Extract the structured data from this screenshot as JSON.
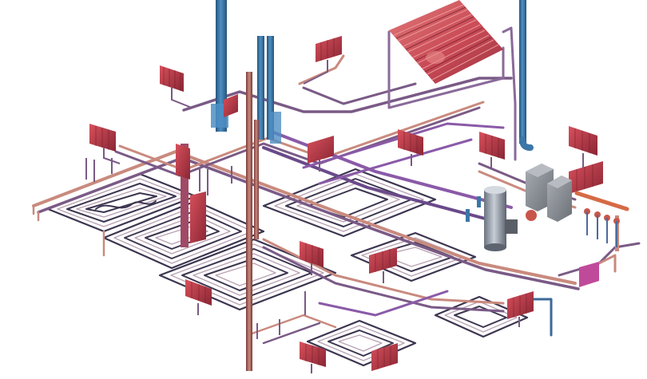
{
  "scene": {
    "background": "#ffffff",
    "colors": {
      "supply_pipe": "#c98a7e",
      "return_pipe": "#7a5a86",
      "violet_pipe": "#8a5aa8",
      "riser_blue": "#3b76a8",
      "riser_blue_dark": "#27547a",
      "radiator_red": "#c43a48",
      "radiator_dark": "#7a2432",
      "floor_coil_dark": "#3d3550",
      "floor_coil_light": "#b9a2b4",
      "collector_red": "#d8646a",
      "tank_grey": "#9aa3ae",
      "boiler_grey": "#8c9096",
      "manifold_orange": "#d66a45"
    },
    "components": {
      "solar_collector": "solar-collector",
      "storage_tank": "storage-tank",
      "boilers": 2,
      "radiators": 18,
      "underfloor_loops": 6,
      "risers": 5
    }
  }
}
